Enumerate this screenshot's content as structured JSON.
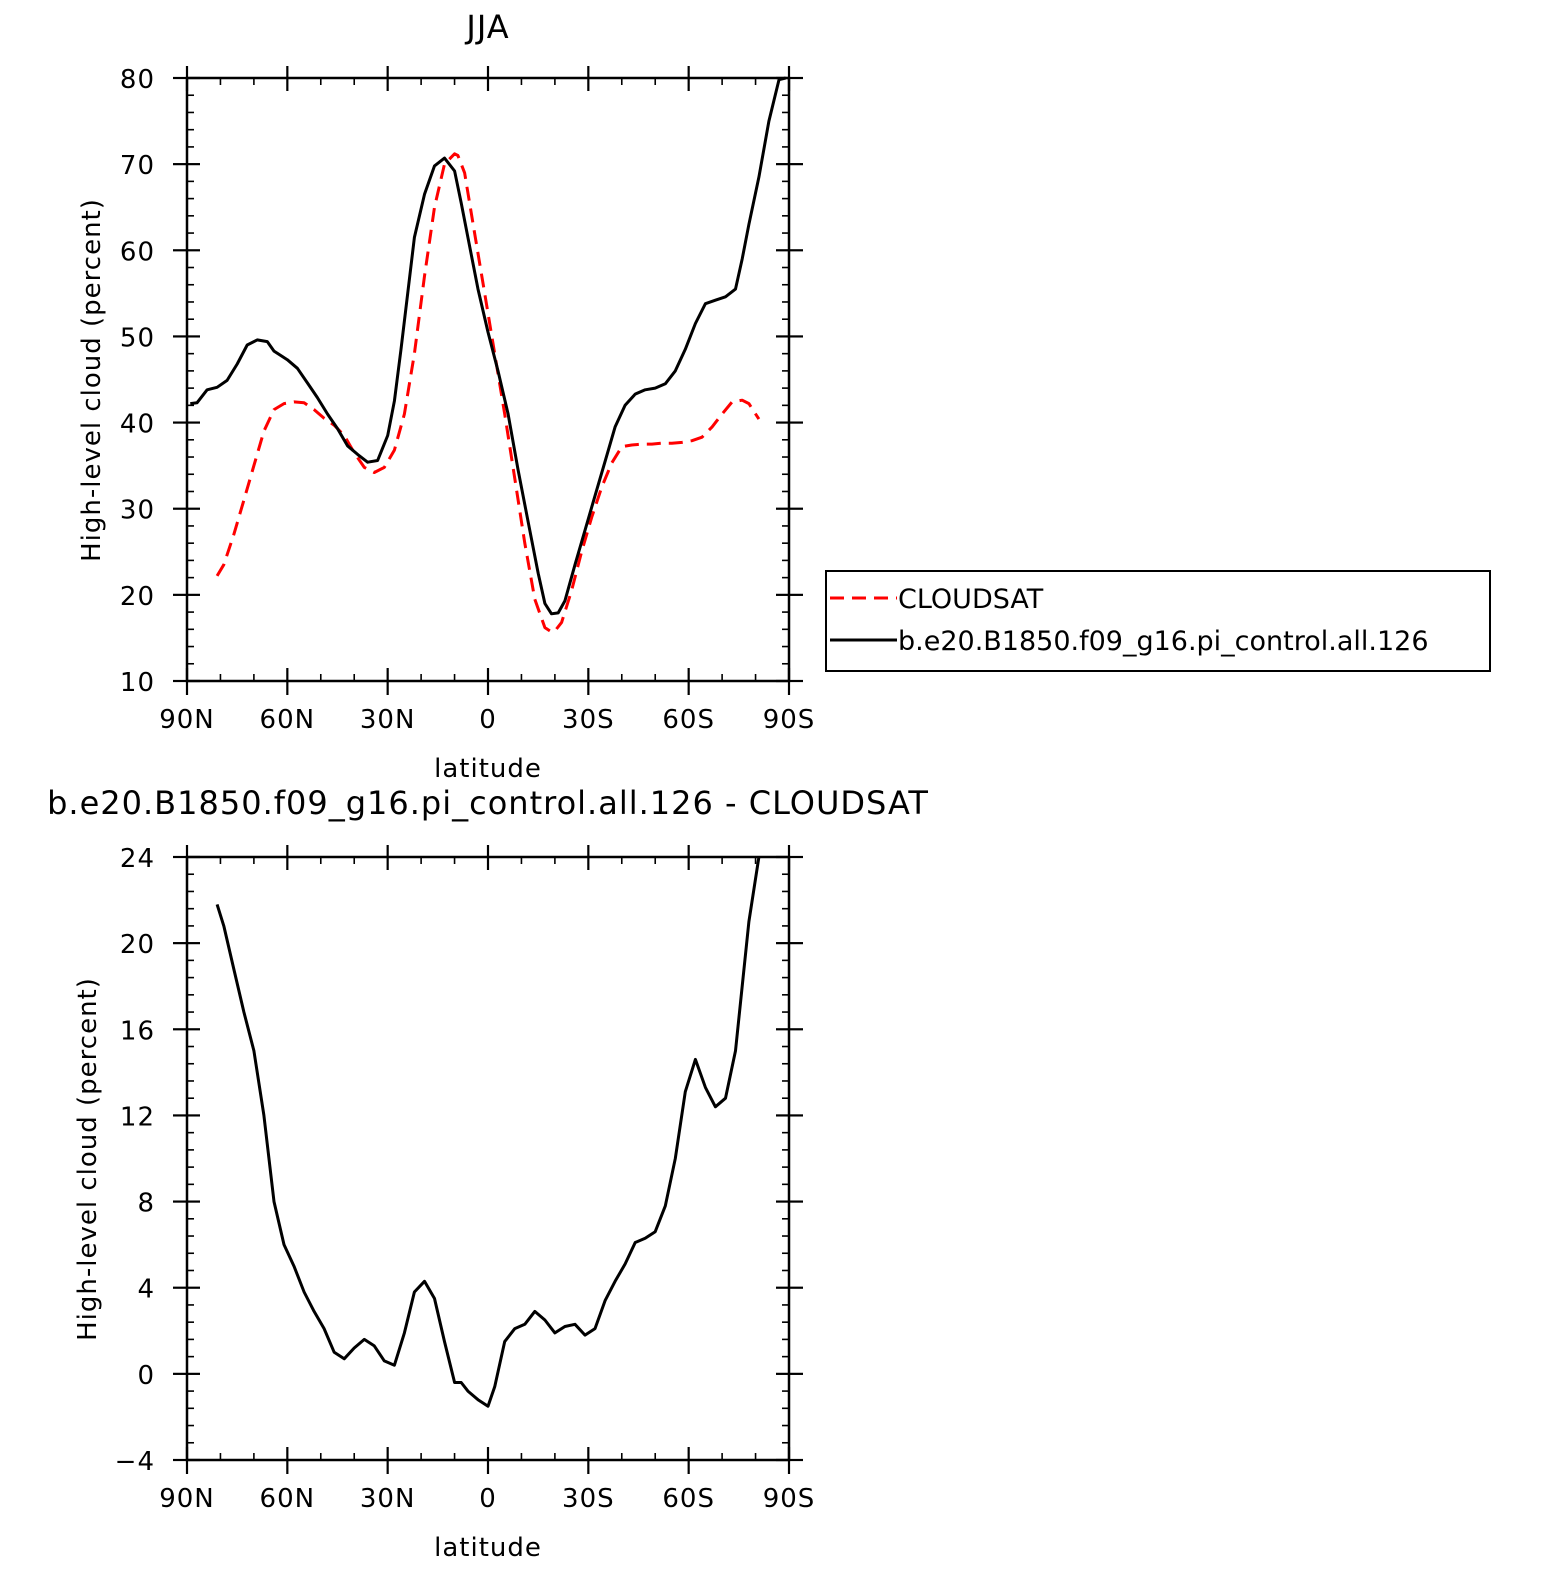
{
  "chart_data": [
    {
      "type": "line",
      "title": "JJA",
      "xlabel": "latitude",
      "ylabel": "High-level cloud (percent)",
      "xlim": [
        -90,
        90
      ],
      "ylim": [
        10,
        80
      ],
      "xticks": [
        -90,
        -60,
        -30,
        0,
        30,
        60,
        90
      ],
      "xtick_labels": [
        "90N",
        "60N",
        "30N",
        "0",
        "30S",
        "60S",
        "90S"
      ],
      "yticks": [
        10,
        20,
        30,
        40,
        50,
        60,
        70,
        80
      ],
      "ytick_labels": [
        "10",
        "20",
        "30",
        "40",
        "50",
        "60",
        "70",
        "80"
      ],
      "legend": {
        "placement": "right",
        "entries": [
          "CLOUDSAT",
          "b.e20.B1850.f09_g16.pi_control.all.126"
        ]
      },
      "series": [
        {
          "name": "CLOUDSAT",
          "color": "#ff0000",
          "dash": "dashed",
          "x": [
            -81,
            -79,
            -76,
            -73,
            -70,
            -67,
            -64,
            -61,
            -58,
            -55,
            -52,
            -49,
            -46,
            -43,
            -40,
            -37,
            -34,
            -31,
            -28,
            -25,
            -22,
            -19,
            -16,
            -13,
            -10,
            -9,
            -7,
            -4,
            -1,
            2,
            5,
            8,
            11,
            14,
            17,
            19,
            20,
            22,
            25,
            28,
            31,
            34,
            37,
            40,
            43,
            46,
            49,
            52,
            55,
            58,
            61,
            64,
            67,
            70,
            73,
            76,
            78,
            80,
            81
          ],
          "y": [
            22.2,
            23.5,
            27,
            31,
            35,
            39,
            41.5,
            42.2,
            42.4,
            42.3,
            41.5,
            40.5,
            39.7,
            38.5,
            36.5,
            34.8,
            34.2,
            34.8,
            36.8,
            41,
            48,
            57,
            65,
            70,
            71.2,
            71,
            69,
            62,
            55,
            48,
            41,
            33.5,
            26,
            19.5,
            16.2,
            15.7,
            15.8,
            16.8,
            20.5,
            25,
            29,
            32.5,
            35.3,
            37.2,
            37.4,
            37.5,
            37.5,
            37.6,
            37.6,
            37.7,
            37.9,
            38.3,
            39.5,
            41,
            42.4,
            42.6,
            42.2,
            41,
            40.4
          ]
        },
        {
          "name": "b.e20.B1850.f09_g16.pi_control.all.126",
          "color": "#000000",
          "dash": "solid",
          "x": [
            -89,
            -87,
            -84,
            -81,
            -78,
            -75,
            -72,
            -69,
            -66,
            -64,
            -62,
            -60,
            -57,
            -54,
            -51,
            -48,
            -45,
            -42,
            -39,
            -36,
            -33,
            -30,
            -28,
            -26,
            -24,
            -22,
            -19,
            -16,
            -13,
            -10,
            -8,
            -6,
            -3,
            0,
            3,
            6,
            9,
            12,
            15,
            17,
            19,
            21,
            23,
            26,
            29,
            32,
            35,
            38,
            41,
            44,
            47,
            50,
            53,
            56,
            59,
            62,
            65,
            68,
            71,
            74,
            76,
            78,
            81,
            84,
            87,
            89
          ],
          "y": [
            42.2,
            42.3,
            43.8,
            44.1,
            44.9,
            46.8,
            49,
            49.6,
            49.4,
            48.3,
            47.8,
            47.3,
            46.3,
            44.6,
            42.9,
            41,
            39.3,
            37.3,
            36.3,
            35.4,
            35.6,
            38.5,
            42.5,
            48.5,
            55,
            61.5,
            66.5,
            69.8,
            70.7,
            69.2,
            65.5,
            61.5,
            55.5,
            50.5,
            46,
            41,
            34.5,
            28.5,
            22.5,
            19,
            17.8,
            17.9,
            19.3,
            23.5,
            27.5,
            31.5,
            35.5,
            39.5,
            42,
            43.3,
            43.8,
            44,
            44.5,
            46,
            48.5,
            51.5,
            53.8,
            54.2,
            54.6,
            55.5,
            59,
            63,
            68.5,
            75,
            79.8,
            80
          ]
        }
      ]
    },
    {
      "type": "line",
      "title": "b.e20.B1850.f09_g16.pi_control.all.126 - CLOUDSAT",
      "xlabel": "latitude",
      "ylabel": "High-level cloud (percent)",
      "xlim": [
        -90,
        90
      ],
      "ylim": [
        -4,
        24
      ],
      "xticks": [
        -90,
        -60,
        -30,
        0,
        30,
        60,
        90
      ],
      "xtick_labels": [
        "90N",
        "60N",
        "30N",
        "0",
        "30S",
        "60S",
        "90S"
      ],
      "yticks": [
        -4,
        0,
        4,
        8,
        12,
        16,
        20,
        24
      ],
      "ytick_labels": [
        "−4",
        "0",
        "4",
        "8",
        "12",
        "16",
        "20",
        "24"
      ],
      "series": [
        {
          "color": "#000000",
          "dash": "solid",
          "x": [
            -81,
            -79,
            -76,
            -73,
            -70,
            -67,
            -64,
            -61,
            -58,
            -55,
            -52,
            -49,
            -46,
            -43,
            -40,
            -37,
            -34,
            -31,
            -28,
            -25,
            -22,
            -19,
            -16,
            -13,
            -10,
            -8,
            -6,
            -3,
            0,
            2,
            5,
            8,
            11,
            14,
            17,
            20,
            23,
            26,
            29,
            32,
            35,
            38,
            41,
            44,
            47,
            50,
            53,
            56,
            59,
            62,
            65,
            68,
            71,
            74,
            76,
            78,
            81
          ],
          "y": [
            21.8,
            20.8,
            18.8,
            16.8,
            15,
            12,
            8,
            6,
            5,
            3.8,
            2.9,
            2.1,
            1,
            0.7,
            1.2,
            1.6,
            1.3,
            0.6,
            0.4,
            1.9,
            3.8,
            4.3,
            3.5,
            1.5,
            -0.4,
            -0.4,
            -0.8,
            -1.2,
            -1.5,
            -0.6,
            1.5,
            2.1,
            2.3,
            2.9,
            2.5,
            1.9,
            2.2,
            2.3,
            1.8,
            2.1,
            3.4,
            4.3,
            5.1,
            6.1,
            6.3,
            6.6,
            7.8,
            10,
            13.1,
            14.6,
            13.3,
            12.4,
            12.8,
            15,
            18,
            21,
            24
          ]
        }
      ]
    }
  ]
}
